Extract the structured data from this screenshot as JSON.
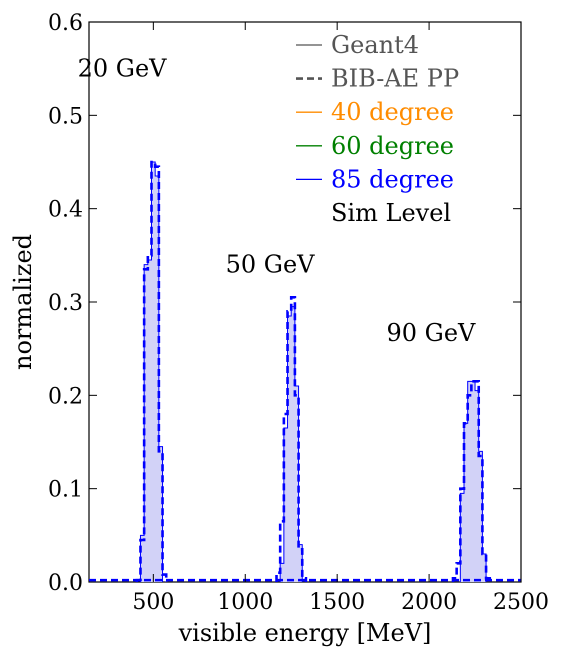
{
  "chart_data": {
    "type": "step-histogram",
    "xlabel": "visible energy [MeV]",
    "ylabel": "normalized",
    "xlim": [
      150,
      2500
    ],
    "ylim": [
      0,
      0.6
    ],
    "xticks": [
      500,
      1000,
      1500,
      2000,
      2500
    ],
    "yticks": [
      0.0,
      0.1,
      0.2,
      0.3,
      0.4,
      0.5,
      0.6
    ],
    "xtick_labels": [
      "500",
      "1000",
      "1500",
      "2000",
      "2500"
    ],
    "ytick_labels": [
      "0.0",
      "0.1",
      "0.2",
      "0.3",
      "0.4",
      "0.5",
      "0.6"
    ],
    "grid": false,
    "legend_position": "top-right",
    "legend": [
      {
        "label": "Geant4",
        "style": "solid",
        "color": "#555555",
        "text_color": "#555555"
      },
      {
        "label": "BIB-AE PP",
        "style": "dashed",
        "color": "#555555",
        "text_color": "#555555"
      },
      {
        "label": "40 degree",
        "style": "solid",
        "color": "#ff8c00",
        "text_color": "#ff8c00"
      },
      {
        "label": "60 degree",
        "style": "solid",
        "color": "#008000",
        "text_color": "#008000"
      },
      {
        "label": "85 degree",
        "style": "solid",
        "color": "#0000ff",
        "text_color": "#0000ff"
      },
      {
        "label": "Sim Level",
        "style": "none",
        "color": "#000000",
        "text_color": "#000000"
      }
    ],
    "annotations": [
      {
        "text": "20 GeV",
        "x": 330,
        "y": 0.55
      },
      {
        "text": "50 GeV",
        "x": 1135,
        "y": 0.34
      },
      {
        "text": "90 GeV",
        "x": 2010,
        "y": 0.267
      }
    ],
    "series": [
      {
        "name": "Geant4",
        "style": "filled-step",
        "color": "#0000ff",
        "fill": "#d2d2f7",
        "bin_width": 20,
        "bins": [
          [
            430,
            0.05
          ],
          [
            450,
            0.34
          ],
          [
            470,
            0.345
          ],
          [
            490,
            0.45
          ],
          [
            510,
            0.435
          ],
          [
            530,
            0.145
          ],
          [
            1190,
            0.02
          ],
          [
            1210,
            0.165
          ],
          [
            1230,
            0.285
          ],
          [
            1250,
            0.295
          ],
          [
            1270,
            0.21
          ],
          [
            1290,
            0.04
          ],
          [
            2170,
            0.095
          ],
          [
            2190,
            0.17
          ],
          [
            2210,
            0.215
          ],
          [
            2230,
            0.215
          ],
          [
            2250,
            0.205
          ],
          [
            2270,
            0.14
          ],
          [
            2290,
            0.03
          ]
        ]
      },
      {
        "name": "BIB-AE PP",
        "style": "dashed-step",
        "color": "#0000ff",
        "bin_width": 20,
        "bins": [
          [
            410,
            0.002
          ],
          [
            430,
            0.045
          ],
          [
            450,
            0.335
          ],
          [
            470,
            0.35
          ],
          [
            490,
            0.45
          ],
          [
            510,
            0.445
          ],
          [
            530,
            0.14
          ],
          [
            550,
            0.008
          ],
          [
            1170,
            0.01
          ],
          [
            1190,
            0.065
          ],
          [
            1210,
            0.18
          ],
          [
            1230,
            0.29
          ],
          [
            1250,
            0.305
          ],
          [
            1270,
            0.2
          ],
          [
            1290,
            0.035
          ],
          [
            1310,
            0.004
          ],
          [
            2130,
            0.004
          ],
          [
            2150,
            0.02
          ],
          [
            2170,
            0.1
          ],
          [
            2190,
            0.17
          ],
          [
            2210,
            0.2
          ],
          [
            2230,
            0.215
          ],
          [
            2250,
            0.215
          ],
          [
            2270,
            0.135
          ],
          [
            2290,
            0.03
          ],
          [
            2310,
            0.004
          ]
        ]
      }
    ]
  }
}
